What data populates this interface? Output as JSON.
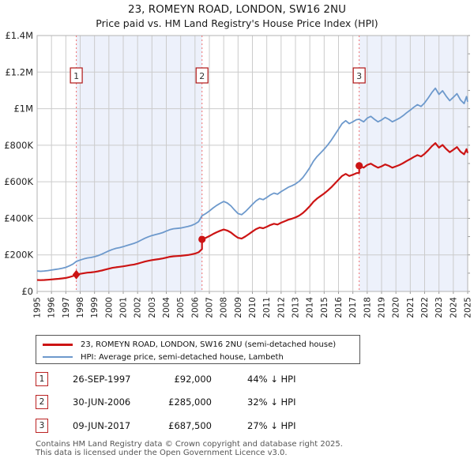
{
  "header": {
    "title": "23, ROMEYN ROAD, LONDON, SW16 2NU",
    "subtitle": "Price paid vs. HM Land Registry's House Price Index (HPI)"
  },
  "chart_data": {
    "type": "line",
    "title": "23, ROMEYN ROAD, LONDON, SW16 2NU",
    "subtitle": "Price paid vs. HM Land Registry's House Price Index (HPI)",
    "x_axis": {
      "min": 1995,
      "max": 2025,
      "tick_years": [
        1995,
        1996,
        1997,
        1998,
        1999,
        2000,
        2001,
        2002,
        2003,
        2004,
        2005,
        2006,
        2007,
        2008,
        2009,
        2010,
        2011,
        2012,
        2013,
        2014,
        2015,
        2016,
        2017,
        2018,
        2019,
        2020,
        2021,
        2022,
        2023,
        2024,
        2025
      ]
    },
    "y_axis": {
      "min": 0,
      "max": 1400000,
      "minor_step": 100000,
      "ticks": [
        {
          "value": 0,
          "label": "£0"
        },
        {
          "value": 200000,
          "label": "£200K"
        },
        {
          "value": 400000,
          "label": "£400K"
        },
        {
          "value": 600000,
          "label": "£600K"
        },
        {
          "value": 800000,
          "label": "£800K"
        },
        {
          "value": 1000000,
          "label": "£1M"
        },
        {
          "value": 1200000,
          "label": "£1.2M"
        },
        {
          "value": 1400000,
          "label": "£1.4M"
        }
      ]
    },
    "bands": [
      {
        "from": 1997.73,
        "to": 2006.49
      },
      {
        "from": 2017.44,
        "to": 2025
      }
    ],
    "sales": [
      {
        "num": "1",
        "x": 1997.73,
        "date": "26-SEP-1997",
        "price": 92000,
        "marker": "diamond"
      },
      {
        "num": "2",
        "x": 2006.49,
        "date": "30-JUN-2006",
        "price": 285000,
        "marker": "circle"
      },
      {
        "num": "3",
        "x": 2017.44,
        "date": "09-JUN-2017",
        "price": 687500,
        "marker": "circle"
      }
    ],
    "colors": {
      "price_line": "#cc1414",
      "hpi_line": "#6d99cc",
      "sale_dash": "#ef7070",
      "band": "#edf1fb",
      "grid": "#cbcbcb",
      "plot_border": "#b3b3b3",
      "marker_box_border": "#b01616",
      "tick": "#999999"
    },
    "series": [
      {
        "id": "price-paid",
        "label": "23, ROMEYN ROAD, LONDON, SW16 2NU (semi-detached house)",
        "color": "#cc1414",
        "width": 2.2,
        "points": [
          [
            1995.0,
            62800
          ],
          [
            1995.25,
            61700
          ],
          [
            1995.5,
            62800
          ],
          [
            1995.75,
            64000
          ],
          [
            1996.0,
            65600
          ],
          [
            1996.25,
            67300
          ],
          [
            1996.5,
            69000
          ],
          [
            1996.75,
            71200
          ],
          [
            1997.0,
            74100
          ],
          [
            1997.25,
            78500
          ],
          [
            1997.5,
            84200
          ],
          [
            1997.73,
            92000
          ],
          [
            1998.0,
            96500
          ],
          [
            1998.25,
            99900
          ],
          [
            1998.5,
            102700
          ],
          [
            1998.75,
            104300
          ],
          [
            1999.0,
            106600
          ],
          [
            1999.25,
            110000
          ],
          [
            1999.5,
            114500
          ],
          [
            1999.75,
            119500
          ],
          [
            2000.0,
            124500
          ],
          [
            2000.25,
            129000
          ],
          [
            2000.5,
            132400
          ],
          [
            2000.75,
            134600
          ],
          [
            2001.0,
            137400
          ],
          [
            2001.25,
            140800
          ],
          [
            2001.5,
            144200
          ],
          [
            2001.75,
            147500
          ],
          [
            2002.0,
            152000
          ],
          [
            2002.25,
            157600
          ],
          [
            2002.5,
            163300
          ],
          [
            2002.75,
            167700
          ],
          [
            2003.0,
            171700
          ],
          [
            2003.25,
            174500
          ],
          [
            2003.5,
            177300
          ],
          [
            2003.75,
            180600
          ],
          [
            2004.0,
            185100
          ],
          [
            2004.25,
            189600
          ],
          [
            2004.5,
            192400
          ],
          [
            2004.75,
            193500
          ],
          [
            2005.0,
            194700
          ],
          [
            2005.25,
            196900
          ],
          [
            2005.5,
            199200
          ],
          [
            2005.75,
            202500
          ],
          [
            2006.0,
            207000
          ],
          [
            2006.25,
            214300
          ],
          [
            2006.49,
            232200
          ],
          [
            2006.49,
            285000
          ],
          [
            2006.75,
            293300
          ],
          [
            2007.0,
            302900
          ],
          [
            2007.25,
            313900
          ],
          [
            2007.5,
            323500
          ],
          [
            2007.75,
            331800
          ],
          [
            2008.0,
            338700
          ],
          [
            2008.25,
            333200
          ],
          [
            2008.5,
            322200
          ],
          [
            2008.75,
            307000
          ],
          [
            2009.0,
            293300
          ],
          [
            2009.25,
            289100
          ],
          [
            2009.5,
            300100
          ],
          [
            2009.75,
            313900
          ],
          [
            2010.0,
            327700
          ],
          [
            2010.25,
            340800
          ],
          [
            2010.5,
            349700
          ],
          [
            2010.75,
            345600
          ],
          [
            2011.0,
            353800
          ],
          [
            2011.25,
            363500
          ],
          [
            2011.5,
            370400
          ],
          [
            2011.75,
            366200
          ],
          [
            2012.0,
            375900
          ],
          [
            2012.25,
            384100
          ],
          [
            2012.5,
            392400
          ],
          [
            2012.75,
            397900
          ],
          [
            2013.0,
            404800
          ],
          [
            2013.25,
            414400
          ],
          [
            2013.5,
            428200
          ],
          [
            2013.75,
            446100
          ],
          [
            2014.0,
            466700
          ],
          [
            2014.25,
            490100
          ],
          [
            2014.5,
            508000
          ],
          [
            2014.75,
            521800
          ],
          [
            2015.0,
            535600
          ],
          [
            2015.25,
            552100
          ],
          [
            2015.5,
            570000
          ],
          [
            2015.75,
            590600
          ],
          [
            2016.0,
            611300
          ],
          [
            2016.25,
            631900
          ],
          [
            2016.5,
            643000
          ],
          [
            2016.75,
            631900
          ],
          [
            2017.0,
            638800
          ],
          [
            2017.25,
            647100
          ],
          [
            2017.44,
            648400
          ],
          [
            2017.44,
            687500
          ],
          [
            2017.75,
            677300
          ],
          [
            2018.0,
            691900
          ],
          [
            2018.25,
            699200
          ],
          [
            2018.5,
            687500
          ],
          [
            2018.75,
            677300
          ],
          [
            2019.0,
            684600
          ],
          [
            2019.25,
            694800
          ],
          [
            2019.5,
            687500
          ],
          [
            2019.75,
            677300
          ],
          [
            2020.0,
            684600
          ],
          [
            2020.25,
            691900
          ],
          [
            2020.5,
            702100
          ],
          [
            2020.75,
            713800
          ],
          [
            2021.0,
            724000
          ],
          [
            2021.25,
            735700
          ],
          [
            2021.5,
            745900
          ],
          [
            2021.75,
            738600
          ],
          [
            2022.0,
            753200
          ],
          [
            2022.25,
            772200
          ],
          [
            2022.5,
            794100
          ],
          [
            2022.75,
            811600
          ],
          [
            2023.0,
            786800
          ],
          [
            2023.25,
            801400
          ],
          [
            2023.5,
            779500
          ],
          [
            2023.75,
            762000
          ],
          [
            2024.0,
            775100
          ],
          [
            2024.25,
            789700
          ],
          [
            2024.5,
            764900
          ],
          [
            2024.75,
            750300
          ],
          [
            2024.92,
            778000
          ],
          [
            2025.0,
            757500
          ]
        ]
      },
      {
        "id": "hpi",
        "label": "HPI: Average price, semi-detached house, Lambeth",
        "color": "#6d99cc",
        "width": 1.8,
        "points": [
          [
            1995.0,
            112000
          ],
          [
            1995.25,
            110000
          ],
          [
            1995.5,
            112000
          ],
          [
            1995.75,
            114000
          ],
          [
            1996.0,
            117000
          ],
          [
            1996.25,
            120000
          ],
          [
            1996.5,
            123000
          ],
          [
            1996.75,
            127000
          ],
          [
            1997.0,
            132000
          ],
          [
            1997.25,
            140000
          ],
          [
            1997.5,
            150000
          ],
          [
            1997.73,
            164000
          ],
          [
            1998.0,
            172000
          ],
          [
            1998.25,
            178000
          ],
          [
            1998.5,
            183000
          ],
          [
            1998.75,
            186000
          ],
          [
            1999.0,
            190000
          ],
          [
            1999.25,
            196000
          ],
          [
            1999.5,
            204000
          ],
          [
            1999.75,
            213000
          ],
          [
            2000.0,
            222000
          ],
          [
            2000.25,
            230000
          ],
          [
            2000.5,
            236000
          ],
          [
            2000.75,
            240000
          ],
          [
            2001.0,
            245000
          ],
          [
            2001.25,
            251000
          ],
          [
            2001.5,
            257000
          ],
          [
            2001.75,
            263000
          ],
          [
            2002.0,
            271000
          ],
          [
            2002.25,
            281000
          ],
          [
            2002.5,
            291000
          ],
          [
            2002.75,
            299000
          ],
          [
            2003.0,
            306000
          ],
          [
            2003.25,
            311000
          ],
          [
            2003.5,
            316000
          ],
          [
            2003.75,
            322000
          ],
          [
            2004.0,
            330000
          ],
          [
            2004.25,
            338000
          ],
          [
            2004.5,
            343000
          ],
          [
            2004.75,
            345000
          ],
          [
            2005.0,
            347000
          ],
          [
            2005.25,
            351000
          ],
          [
            2005.5,
            355000
          ],
          [
            2005.75,
            361000
          ],
          [
            2006.0,
            369000
          ],
          [
            2006.25,
            382000
          ],
          [
            2006.49,
            414000
          ],
          [
            2006.75,
            426000
          ],
          [
            2007.0,
            440000
          ],
          [
            2007.25,
            456000
          ],
          [
            2007.5,
            470000
          ],
          [
            2007.75,
            482000
          ],
          [
            2008.0,
            492000
          ],
          [
            2008.25,
            484000
          ],
          [
            2008.5,
            468000
          ],
          [
            2008.75,
            446000
          ],
          [
            2009.0,
            426000
          ],
          [
            2009.25,
            420000
          ],
          [
            2009.5,
            436000
          ],
          [
            2009.75,
            456000
          ],
          [
            2010.0,
            476000
          ],
          [
            2010.25,
            495000
          ],
          [
            2010.5,
            508000
          ],
          [
            2010.75,
            502000
          ],
          [
            2011.0,
            514000
          ],
          [
            2011.25,
            528000
          ],
          [
            2011.5,
            538000
          ],
          [
            2011.75,
            532000
          ],
          [
            2012.0,
            546000
          ],
          [
            2012.25,
            558000
          ],
          [
            2012.5,
            570000
          ],
          [
            2012.75,
            578000
          ],
          [
            2013.0,
            588000
          ],
          [
            2013.25,
            602000
          ],
          [
            2013.5,
            622000
          ],
          [
            2013.75,
            648000
          ],
          [
            2014.0,
            678000
          ],
          [
            2014.25,
            712000
          ],
          [
            2014.5,
            738000
          ],
          [
            2014.75,
            758000
          ],
          [
            2015.0,
            778000
          ],
          [
            2015.25,
            802000
          ],
          [
            2015.5,
            828000
          ],
          [
            2015.75,
            858000
          ],
          [
            2016.0,
            888000
          ],
          [
            2016.25,
            918000
          ],
          [
            2016.5,
            934000
          ],
          [
            2016.75,
            918000
          ],
          [
            2017.0,
            928000
          ],
          [
            2017.25,
            940000
          ],
          [
            2017.44,
            942000
          ],
          [
            2017.75,
            928000
          ],
          [
            2018.0,
            948000
          ],
          [
            2018.25,
            958000
          ],
          [
            2018.5,
            942000
          ],
          [
            2018.75,
            928000
          ],
          [
            2019.0,
            938000
          ],
          [
            2019.25,
            952000
          ],
          [
            2019.5,
            942000
          ],
          [
            2019.75,
            928000
          ],
          [
            2020.0,
            938000
          ],
          [
            2020.25,
            948000
          ],
          [
            2020.5,
            962000
          ],
          [
            2020.75,
            978000
          ],
          [
            2021.0,
            992000
          ],
          [
            2021.25,
            1008000
          ],
          [
            2021.5,
            1022000
          ],
          [
            2021.75,
            1012000
          ],
          [
            2022.0,
            1032000
          ],
          [
            2022.25,
            1058000
          ],
          [
            2022.5,
            1088000
          ],
          [
            2022.75,
            1112000
          ],
          [
            2023.0,
            1078000
          ],
          [
            2023.25,
            1098000
          ],
          [
            2023.5,
            1068000
          ],
          [
            2023.75,
            1044000
          ],
          [
            2024.0,
            1062000
          ],
          [
            2024.25,
            1082000
          ],
          [
            2024.5,
            1048000
          ],
          [
            2024.75,
            1028000
          ],
          [
            2024.92,
            1066000
          ],
          [
            2025.0,
            1038000
          ]
        ]
      }
    ]
  },
  "sales_table": {
    "rows": [
      {
        "num": "1",
        "date": "26-SEP-1997",
        "price": "£92,000",
        "vs_hpi": "44% ↓ HPI"
      },
      {
        "num": "2",
        "date": "30-JUN-2006",
        "price": "£285,000",
        "vs_hpi": "32% ↓ HPI"
      },
      {
        "num": "3",
        "date": "09-JUN-2017",
        "price": "£687,500",
        "vs_hpi": "27% ↓ HPI"
      }
    ]
  },
  "footer": {
    "line1": "Contains HM Land Registry data © Crown copyright and database right 2025.",
    "line2": "This data is licensed under the Open Government Licence v3.0."
  }
}
